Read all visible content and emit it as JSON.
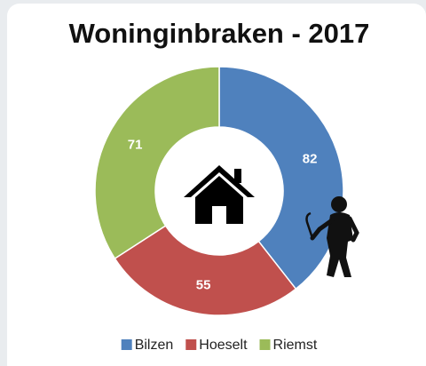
{
  "chart_data": {
    "type": "donut",
    "title": "Woninginbraken - 2017",
    "categories": [
      "Bilzen",
      "Hoeselt",
      "Riemst"
    ],
    "values": [
      82,
      55,
      71
    ],
    "colors": [
      "#4f81bd",
      "#c0504d",
      "#9bbb59"
    ],
    "legend": "bottom"
  }
}
